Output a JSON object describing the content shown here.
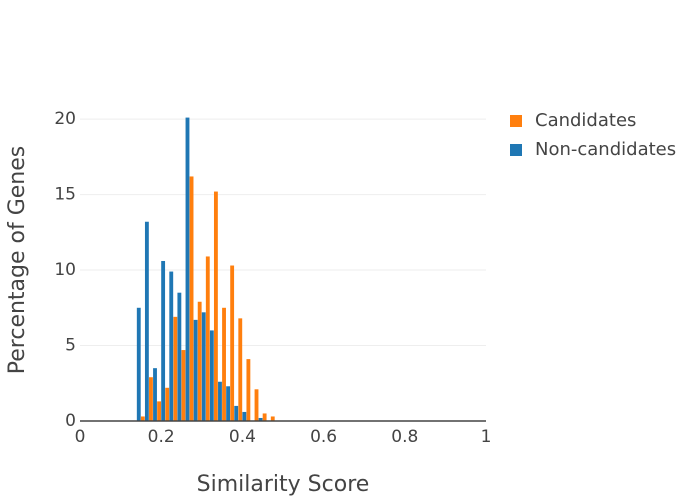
{
  "chart_data": {
    "type": "histogram",
    "xlabel": "Similarity Score",
    "ylabel": "Percentage of Genes",
    "bins": [
      0.14,
      0.16,
      0.18,
      0.2,
      0.22,
      0.24,
      0.26,
      0.28,
      0.3,
      0.32,
      0.34,
      0.36,
      0.38,
      0.4,
      0.42,
      0.44,
      0.46,
      0.48
    ],
    "series": [
      {
        "name": "Candidates",
        "color": "#ff7f0e",
        "values": [
          0.3,
          2.9,
          1.3,
          2.2,
          6.9,
          4.7,
          16.2,
          7.9,
          10.9,
          15.2,
          7.5,
          10.3,
          6.8,
          4.1,
          2.1,
          0.5,
          0.3
        ]
      },
      {
        "name": "Non-candidates",
        "color": "#1f77b4",
        "values": [
          7.5,
          13.2,
          3.5,
          10.6,
          9.9,
          8.5,
          20.1,
          6.7,
          7.2,
          6.0,
          2.6,
          2.3,
          1.0,
          0.6,
          0,
          0.2,
          0
        ]
      }
    ],
    "xlim": [
      0,
      1
    ],
    "xticks": [
      0,
      0.2,
      0.4,
      0.6,
      0.8,
      1
    ],
    "ylim": [
      0,
      21
    ],
    "yticks": [
      0,
      5,
      10,
      15,
      20
    ],
    "grid": true,
    "legend": "right"
  }
}
